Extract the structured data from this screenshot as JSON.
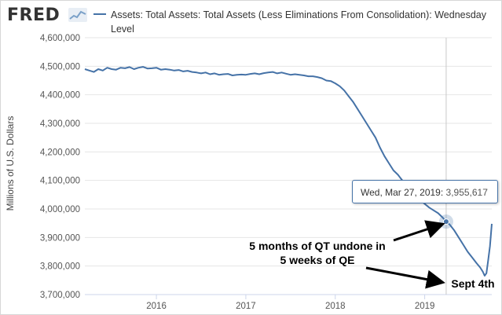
{
  "header": {
    "logo_text": "FRED",
    "legend": "Assets: Total Assets: Total Assets (Less Eliminations From Consolidation): Wednesday Level"
  },
  "tooltip": {
    "date": "Wed, Mar 27, 2019:",
    "value": "3,955,617"
  },
  "annotations": {
    "qt": [
      "5 months of QT undone in",
      "5 weeks of QE"
    ],
    "sept": "Sept 4th"
  },
  "colors": {
    "line": "#4572a7",
    "grid": "#e6e6e6",
    "text": "#333333"
  },
  "chart_data": {
    "type": "line",
    "title": "",
    "xlabel": "",
    "ylabel": "Millions of U.S. Dollars",
    "ylim": [
      3700000,
      4600000
    ],
    "xlim": [
      2015.2,
      2019.75
    ],
    "yticks": [
      3700000,
      3800000,
      3900000,
      4000000,
      4100000,
      4200000,
      4300000,
      4400000,
      4500000,
      4600000
    ],
    "ytick_labels": [
      "3,700,000",
      "3,800,000",
      "3,900,000",
      "4,000,000",
      "4,100,000",
      "4,200,000",
      "4,300,000",
      "4,400,000",
      "4,500,000",
      "4,600,000"
    ],
    "xticks": [
      2016,
      2017,
      2018,
      2019
    ],
    "xtick_labels": [
      "2016",
      "2017",
      "2018",
      "2019"
    ],
    "grid": true,
    "series": [
      {
        "name": "Assets: Total Assets: Total Assets (Less Eliminations From Consolidation): Wednesday Level",
        "points": [
          [
            2015.2,
            4490000
          ],
          [
            2015.25,
            4485000
          ],
          [
            2015.3,
            4480000
          ],
          [
            2015.35,
            4490000
          ],
          [
            2015.4,
            4485000
          ],
          [
            2015.45,
            4495000
          ],
          [
            2015.5,
            4490000
          ],
          [
            2015.55,
            4488000
          ],
          [
            2015.6,
            4495000
          ],
          [
            2015.65,
            4493000
          ],
          [
            2015.7,
            4497000
          ],
          [
            2015.75,
            4490000
          ],
          [
            2015.8,
            4495000
          ],
          [
            2015.85,
            4498000
          ],
          [
            2015.9,
            4492000
          ],
          [
            2015.95,
            4493000
          ],
          [
            2016.0,
            4495000
          ],
          [
            2016.05,
            4488000
          ],
          [
            2016.1,
            4490000
          ],
          [
            2016.15,
            4488000
          ],
          [
            2016.2,
            4485000
          ],
          [
            2016.25,
            4487000
          ],
          [
            2016.3,
            4482000
          ],
          [
            2016.35,
            4484000
          ],
          [
            2016.4,
            4480000
          ],
          [
            2016.45,
            4478000
          ],
          [
            2016.5,
            4475000
          ],
          [
            2016.55,
            4478000
          ],
          [
            2016.6,
            4472000
          ],
          [
            2016.65,
            4475000
          ],
          [
            2016.7,
            4470000
          ],
          [
            2016.75,
            4472000
          ],
          [
            2016.8,
            4473000
          ],
          [
            2016.85,
            4468000
          ],
          [
            2016.9,
            4470000
          ],
          [
            2016.95,
            4471000
          ],
          [
            2017.0,
            4470000
          ],
          [
            2017.05,
            4473000
          ],
          [
            2017.1,
            4475000
          ],
          [
            2017.15,
            4472000
          ],
          [
            2017.2,
            4476000
          ],
          [
            2017.25,
            4478000
          ],
          [
            2017.3,
            4480000
          ],
          [
            2017.35,
            4475000
          ],
          [
            2017.4,
            4478000
          ],
          [
            2017.45,
            4474000
          ],
          [
            2017.5,
            4470000
          ],
          [
            2017.55,
            4472000
          ],
          [
            2017.6,
            4470000
          ],
          [
            2017.65,
            4468000
          ],
          [
            2017.7,
            4465000
          ],
          [
            2017.75,
            4465000
          ],
          [
            2017.8,
            4462000
          ],
          [
            2017.85,
            4458000
          ],
          [
            2017.9,
            4450000
          ],
          [
            2017.95,
            4448000
          ],
          [
            2018.0,
            4440000
          ],
          [
            2018.05,
            4430000
          ],
          [
            2018.1,
            4415000
          ],
          [
            2018.15,
            4395000
          ],
          [
            2018.2,
            4375000
          ],
          [
            2018.25,
            4350000
          ],
          [
            2018.3,
            4325000
          ],
          [
            2018.35,
            4300000
          ],
          [
            2018.4,
            4275000
          ],
          [
            2018.45,
            4250000
          ],
          [
            2018.5,
            4215000
          ],
          [
            2018.55,
            4185000
          ],
          [
            2018.6,
            4160000
          ],
          [
            2018.65,
            4135000
          ],
          [
            2018.7,
            4120000
          ],
          [
            2018.75,
            4100000
          ],
          [
            2018.8,
            4080000
          ],
          [
            2018.85,
            4060000
          ],
          [
            2018.9,
            4045000
          ],
          [
            2018.95,
            4030000
          ],
          [
            2019.0,
            4018000
          ],
          [
            2019.05,
            4005000
          ],
          [
            2019.1,
            3995000
          ],
          [
            2019.15,
            3985000
          ],
          [
            2019.2,
            3970000
          ],
          [
            2019.24,
            3955617
          ],
          [
            2019.28,
            3945000
          ],
          [
            2019.33,
            3925000
          ],
          [
            2019.38,
            3900000
          ],
          [
            2019.43,
            3875000
          ],
          [
            2019.48,
            3850000
          ],
          [
            2019.53,
            3830000
          ],
          [
            2019.58,
            3810000
          ],
          [
            2019.62,
            3795000
          ],
          [
            2019.65,
            3780000
          ],
          [
            2019.67,
            3766000
          ],
          [
            2019.69,
            3775000
          ],
          [
            2019.71,
            3820000
          ],
          [
            2019.73,
            3870000
          ],
          [
            2019.75,
            3948000
          ]
        ]
      }
    ]
  }
}
